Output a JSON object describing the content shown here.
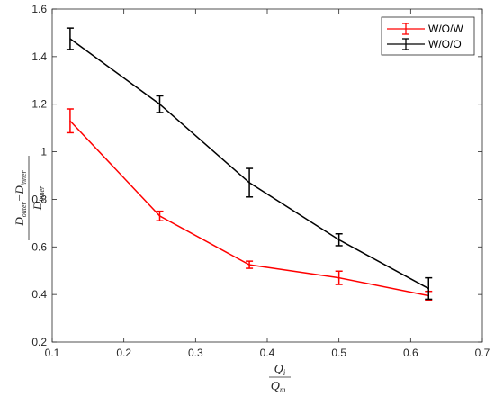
{
  "chart_data": {
    "type": "line",
    "x": [
      0.125,
      0.25,
      0.375,
      0.5,
      0.625
    ],
    "xlim": [
      0.1,
      0.7
    ],
    "ylim": [
      0.2,
      1.6
    ],
    "xticks": [
      "0.1",
      "0.2",
      "0.3",
      "0.4",
      "0.5",
      "0.6",
      "0.7"
    ],
    "yticks": [
      "0.2",
      "0.4",
      "0.6",
      "0.8",
      "1",
      "1.2",
      "1.4",
      "1.6"
    ],
    "xlabel": {
      "numerator": "Q",
      "numerator_sub": "i",
      "denominator": "Q",
      "denominator_sub": "m"
    },
    "ylabel": {
      "numerator_a": "D",
      "numerator_a_sub": "outer",
      "minus": "−",
      "numerator_b": "D",
      "numerator_b_sub": "inner",
      "denominator": "D",
      "denominator_sub": "inner"
    },
    "grid": false,
    "legend_position": "top-right",
    "series": [
      {
        "name": "W/O/W",
        "color": "#ff0000",
        "values": [
          1.13,
          0.73,
          0.525,
          0.47,
          0.395
        ],
        "errors": [
          0.05,
          0.02,
          0.015,
          0.028,
          0.018
        ]
      },
      {
        "name": "W/O/O",
        "color": "#000000",
        "values": [
          1.475,
          1.2,
          0.87,
          0.63,
          0.425
        ],
        "errors": [
          0.045,
          0.035,
          0.06,
          0.025,
          0.045
        ]
      }
    ]
  }
}
